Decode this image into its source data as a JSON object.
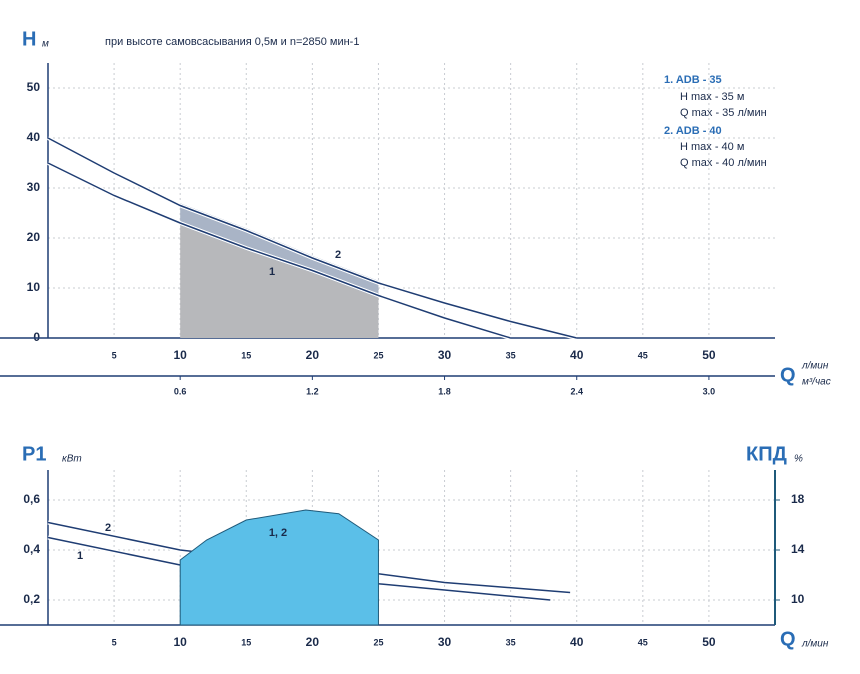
{
  "chart_data": [
    {
      "type": "line",
      "title": "при высоте самовсасывания 0,5м и n=2850 мин-1",
      "y_label": "H",
      "y_unit": "м",
      "x_label": "Q",
      "x_unit": "л/мин",
      "x2_unit": "м³/час",
      "xlim": [
        0,
        55
      ],
      "xticks": [
        5,
        10,
        15,
        20,
        25,
        30,
        35,
        40,
        45,
        50
      ],
      "x2lim": [
        0,
        3.3
      ],
      "x2ticks": [
        0.6,
        1.2,
        1.8,
        2.4,
        {
          "value": 3,
          "label": "3.0"
        }
      ],
      "ylim": [
        0,
        55
      ],
      "yticks": [
        0,
        10,
        20,
        30,
        40,
        50
      ],
      "grid": true,
      "working_range": [
        10,
        25
      ],
      "series": [
        {
          "name": "1",
          "color": "#1f3d73",
          "x": [
            0,
            5,
            10,
            15,
            20,
            25,
            30,
            35
          ],
          "values": [
            35,
            28.5,
            23,
            18,
            13.5,
            8.5,
            4,
            0
          ]
        },
        {
          "name": "2",
          "color": "#1f3d73",
          "x": [
            0,
            5,
            10,
            15,
            20,
            25,
            30,
            35,
            40
          ],
          "values": [
            40,
            33,
            26.5,
            21.5,
            16,
            11,
            7,
            3.3,
            0
          ]
        }
      ],
      "legend": [
        {
          "title": "1. ADB - 35",
          "lines": [
            "H   max - 35 м",
            "Q   max - 35 л/мин"
          ]
        },
        {
          "title": "2. ADB - 40",
          "lines": [
            "H   max - 40 м",
            "Q   max - 40 л/мин"
          ]
        }
      ]
    },
    {
      "type": "line",
      "y_label": "P1",
      "y_unit": "кВт",
      "y2_label": "КПД",
      "y2_unit": "%",
      "x_label": "Q",
      "x_unit": "л/мин",
      "xlim": [
        0,
        55
      ],
      "xticks": [
        5,
        10,
        15,
        20,
        25,
        30,
        35,
        40,
        45,
        50
      ],
      "ylim": [
        0.1,
        0.72
      ],
      "yticks": [
        {
          "value": 0.2,
          "label": "0,2"
        },
        {
          "value": 0.4,
          "label": "0,4"
        },
        {
          "value": 0.6,
          "label": "0,6"
        }
      ],
      "y2lim": [
        8,
        20.4
      ],
      "y2ticks": [
        10,
        14,
        18
      ],
      "grid": true,
      "series": [
        {
          "name": "1",
          "color": "#1f3d73",
          "x": [
            0,
            10,
            20,
            30,
            38
          ],
          "values": [
            0.45,
            0.34,
            0.29,
            0.24,
            0.2
          ]
        },
        {
          "name": "2",
          "color": "#1f3d73",
          "x": [
            0,
            10,
            20,
            30,
            39.5
          ],
          "values": [
            0.51,
            0.4,
            0.34,
            0.27,
            0.23
          ]
        },
        {
          "name": "1, 2",
          "color": "#5bbfe8",
          "axis": "y2",
          "x": [
            10,
            12,
            15,
            19.5,
            22,
            25
          ],
          "values": [
            13.2,
            14.8,
            16.4,
            17.2,
            16.9,
            14.8
          ]
        }
      ]
    }
  ]
}
